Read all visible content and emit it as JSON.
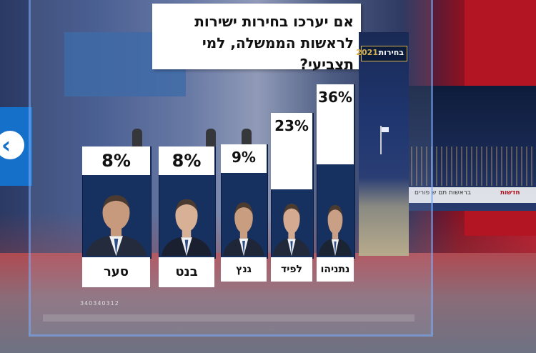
{
  "question": "אם יערכו בחירות ישירות לראשות הממשלה, למי תצביעי?",
  "election_badge": {
    "label": "בחירות",
    "year": "2021"
  },
  "ticker": {
    "text": "בראשות תם ש פורים",
    "logo": "חדשות"
  },
  "serial": "340340312",
  "chart_data": {
    "type": "bar",
    "title": "אם יערכו בחירות ישירות לראשות הממשלה, למי תצביעי?",
    "categories": [
      "נתניהו",
      "לפיד",
      "גנץ",
      "בנט",
      "סער"
    ],
    "values": [
      36,
      23,
      9,
      8,
      8
    ],
    "labels": [
      "36%",
      "23%",
      "9%",
      "8%",
      "8%"
    ],
    "unit": "%",
    "ylim": [
      0,
      40
    ],
    "grid": false,
    "legend": "none",
    "colors": {
      "bar": "#16305f",
      "label_box": "#ffffff"
    }
  }
}
